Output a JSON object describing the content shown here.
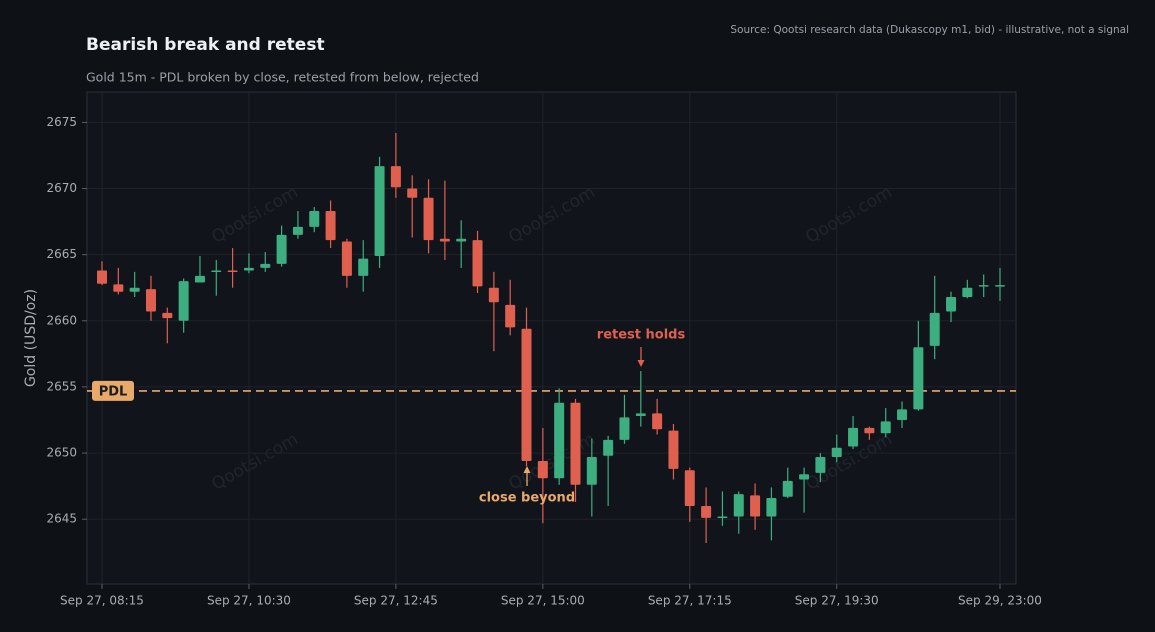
{
  "chart_data": {
    "type": "candlestick",
    "title": "Bearish break and retest",
    "subtitle": "Gold 15m - PDL broken by close, retested from below, rejected",
    "source": "Source: Qootsi research data (Dukascopy m1, bid) - illustrative, not a signal",
    "y_label": "Gold (USD/oz)",
    "watermark": "Qootsi.com",
    "up_color": "#3dae7f",
    "down_color": "#e0604f",
    "grid": true,
    "ylim": [
      2640.1,
      2677.3
    ],
    "yticks": [
      2645,
      2650,
      2655,
      2660,
      2665,
      2670,
      2675
    ],
    "categories": [
      "Sep 27, 08:15",
      null,
      null,
      null,
      null,
      null,
      null,
      null,
      null,
      "Sep 27, 10:30",
      null,
      null,
      null,
      null,
      null,
      null,
      null,
      null,
      "Sep 27, 12:45",
      null,
      null,
      null,
      null,
      null,
      null,
      null,
      null,
      "Sep 27, 15:00",
      null,
      null,
      null,
      null,
      null,
      null,
      null,
      null,
      "Sep 27, 17:15",
      null,
      null,
      null,
      null,
      null,
      null,
      null,
      null,
      "Sep 27, 19:30",
      null,
      null,
      null,
      null,
      null,
      null,
      null,
      null,
      null,
      "Sep 29, 23:00"
    ],
    "open": [
      2663.8,
      2662.75,
      2662.2,
      2662.4,
      2660.6,
      2660.0,
      2662.9,
      2663.7,
      2663.8,
      2663.8,
      2664.0,
      2664.3,
      2666.5,
      2667.1,
      2668.3,
      2666.0,
      2663.4,
      2664.9,
      2671.7,
      2670.0,
      2669.3,
      2666.2,
      2666.0,
      2666.1,
      2662.5,
      2661.2,
      2659.4,
      2649.4,
      2648.1,
      2653.8,
      2647.6,
      2649.8,
      2651.0,
      2652.8,
      2653.0,
      2651.7,
      2648.7,
      2646.0,
      2645.1,
      2645.2,
      2646.8,
      2645.2,
      2646.7,
      2648.0,
      2648.5,
      2649.7,
      2650.5,
      2651.9,
      2651.5,
      2652.5,
      2653.3,
      2658.1,
      2660.7,
      2661.8,
      2662.6,
      2662.6
    ],
    "high": [
      2664.5,
      2664.0,
      2663.7,
      2663.4,
      2661.0,
      2663.2,
      2664.9,
      2664.6,
      2665.5,
      2665.1,
      2665.2,
      2667.2,
      2668.3,
      2668.6,
      2669.1,
      2666.2,
      2666.1,
      2672.4,
      2674.2,
      2671.0,
      2670.7,
      2670.6,
      2667.6,
      2666.8,
      2663.7,
      2663.1,
      2661.0,
      2651.9,
      2654.9,
      2654.1,
      2651.1,
      2651.3,
      2654.4,
      2656.2,
      2654.1,
      2652.2,
      2648.9,
      2647.4,
      2647.1,
      2647.1,
      2647.7,
      2647.4,
      2648.9,
      2648.9,
      2650.0,
      2651.4,
      2652.8,
      2652.0,
      2653.4,
      2653.9,
      2660.0,
      2663.4,
      2662.2,
      2663.1,
      2663.5,
      2664.0
    ],
    "low": [
      2662.7,
      2662.0,
      2661.8,
      2660.0,
      2658.3,
      2659.1,
      2662.9,
      2661.9,
      2662.5,
      2663.6,
      2663.7,
      2664.1,
      2666.2,
      2666.7,
      2665.5,
      2662.5,
      2662.2,
      2664.0,
      2669.3,
      2666.3,
      2665.1,
      2664.6,
      2664.0,
      2662.1,
      2657.7,
      2658.9,
      2649.0,
      2644.7,
      2647.6,
      2646.3,
      2645.2,
      2646.0,
      2650.7,
      2652.0,
      2651.4,
      2648.0,
      2644.8,
      2643.2,
      2644.5,
      2643.9,
      2644.2,
      2643.4,
      2646.6,
      2645.5,
      2647.8,
      2649.3,
      2650.3,
      2651.0,
      2651.2,
      2651.9,
      2653.2,
      2657.1,
      2659.9,
      2661.7,
      2661.8,
      2661.5
    ],
    "close": [
      2662.8,
      2662.2,
      2662.5,
      2660.7,
      2660.2,
      2663.0,
      2663.4,
      2663.8,
      2663.7,
      2664.0,
      2664.3,
      2666.5,
      2667.1,
      2668.3,
      2666.1,
      2663.4,
      2664.7,
      2671.7,
      2670.1,
      2669.3,
      2666.1,
      2666.0,
      2666.2,
      2662.6,
      2661.4,
      2659.5,
      2649.4,
      2648.1,
      2653.8,
      2647.6,
      2649.7,
      2651.0,
      2652.7,
      2653.0,
      2651.8,
      2648.8,
      2646.0,
      2645.1,
      2645.2,
      2646.9,
      2645.2,
      2646.6,
      2647.9,
      2648.4,
      2649.7,
      2650.4,
      2651.9,
      2651.5,
      2652.4,
      2653.3,
      2658.0,
      2660.6,
      2661.8,
      2662.5,
      2662.7,
      2662.7
    ],
    "level": {
      "label": "PDL",
      "value": 2654.7,
      "color": "#e8a96a"
    },
    "annotations": [
      {
        "text": "retest holds",
        "color": "#e0604f"
      },
      {
        "text": "close beyond",
        "color": "#e8a96a"
      }
    ]
  }
}
